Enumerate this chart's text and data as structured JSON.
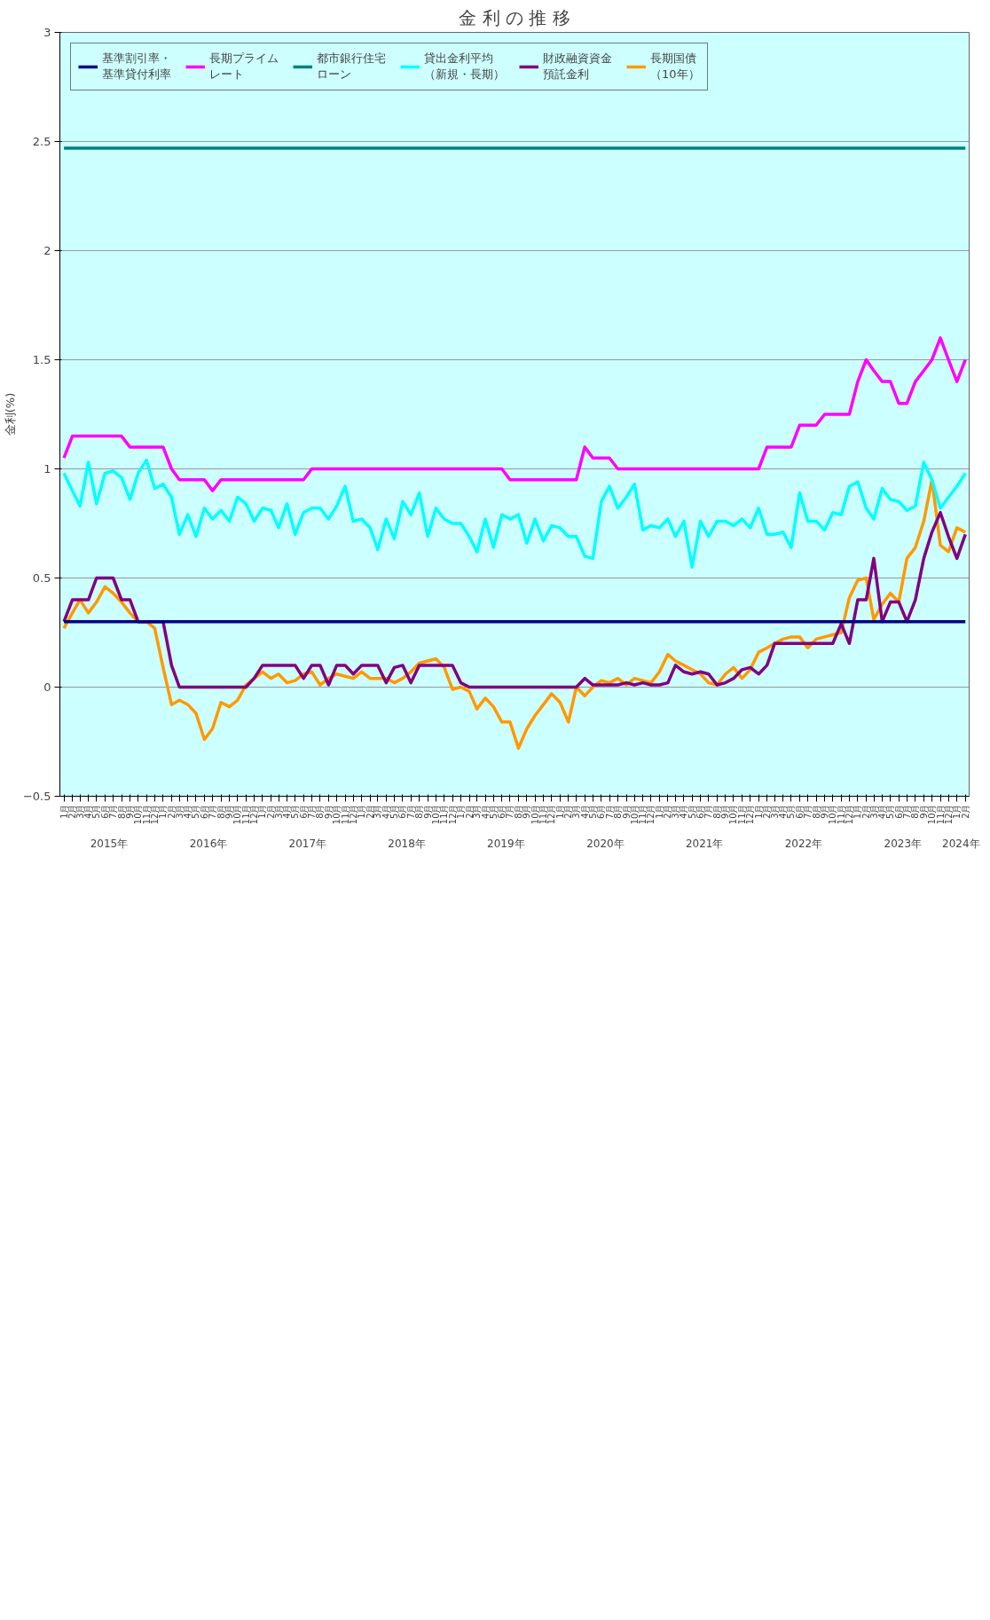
{
  "chart_data": {
    "type": "line",
    "title": "金 利 の 推 移",
    "ylabel": "金利(%)",
    "x": [
      "2015-01",
      "2015-02",
      "2015-03",
      "2015-04",
      "2015-05",
      "2015-06",
      "2015-07",
      "2015-08",
      "2015-09",
      "2015-10",
      "2015-11",
      "2015-12",
      "2016-01",
      "2016-02",
      "2016-03",
      "2016-04",
      "2016-05",
      "2016-06",
      "2016-07",
      "2016-08",
      "2016-09",
      "2016-10",
      "2016-11",
      "2016-12",
      "2017-01",
      "2017-02",
      "2017-03",
      "2017-04",
      "2017-05",
      "2017-06",
      "2017-07",
      "2017-08",
      "2017-09",
      "2017-10",
      "2017-11",
      "2017-12",
      "2018-01",
      "2018-02",
      "2018-03",
      "2018-04",
      "2018-05",
      "2018-06",
      "2018-07",
      "2018-08",
      "2018-09",
      "2018-10",
      "2018-11",
      "2018-12",
      "2019-01",
      "2019-02",
      "2019-03",
      "2019-04",
      "2019-05",
      "2019-06",
      "2019-07",
      "2019-08",
      "2019-09",
      "2019-10",
      "2019-11",
      "2019-12",
      "2020-01",
      "2020-02",
      "2020-03",
      "2020-04",
      "2020-05",
      "2020-06",
      "2020-07",
      "2020-08",
      "2020-09",
      "2020-10",
      "2020-11",
      "2020-12",
      "2021-01",
      "2021-02",
      "2021-03",
      "2021-04",
      "2021-05",
      "2021-06",
      "2021-07",
      "2021-08",
      "2021-09",
      "2021-10",
      "2021-11",
      "2021-12",
      "2022-01",
      "2022-02",
      "2022-03",
      "2022-04",
      "2022-05",
      "2022-06",
      "2022-07",
      "2022-08",
      "2022-09",
      "2022-10",
      "2022-11",
      "2022-12",
      "2023-01",
      "2023-02",
      "2023-03",
      "2023-04",
      "2023-05",
      "2023-06",
      "2023-07",
      "2023-08",
      "2023-09",
      "2023-10",
      "2023-11",
      "2023-12",
      "2024-01",
      "2024-02"
    ],
    "series": [
      {
        "name": "基準割引率・基準貸付利率",
        "color": "#000080",
        "values": [
          0.3,
          0.3,
          0.3,
          0.3,
          0.3,
          0.3,
          0.3,
          0.3,
          0.3,
          0.3,
          0.3,
          0.3,
          0.3,
          0.3,
          0.3,
          0.3,
          0.3,
          0.3,
          0.3,
          0.3,
          0.3,
          0.3,
          0.3,
          0.3,
          0.3,
          0.3,
          0.3,
          0.3,
          0.3,
          0.3,
          0.3,
          0.3,
          0.3,
          0.3,
          0.3,
          0.3,
          0.3,
          0.3,
          0.3,
          0.3,
          0.3,
          0.3,
          0.3,
          0.3,
          0.3,
          0.3,
          0.3,
          0.3,
          0.3,
          0.3,
          0.3,
          0.3,
          0.3,
          0.3,
          0.3,
          0.3,
          0.3,
          0.3,
          0.3,
          0.3,
          0.3,
          0.3,
          0.3,
          0.3,
          0.3,
          0.3,
          0.3,
          0.3,
          0.3,
          0.3,
          0.3,
          0.3,
          0.3,
          0.3,
          0.3,
          0.3,
          0.3,
          0.3,
          0.3,
          0.3,
          0.3,
          0.3,
          0.3,
          0.3,
          0.3,
          0.3,
          0.3,
          0.3,
          0.3,
          0.3,
          0.3,
          0.3,
          0.3,
          0.3,
          0.3,
          0.3,
          0.3,
          0.3,
          0.3,
          0.3,
          0.3,
          0.3,
          0.3,
          0.3,
          0.3,
          0.3,
          0.3,
          0.3,
          0.3,
          0.3
        ]
      },
      {
        "name": "長期プライムレート",
        "color": "#ff00ff",
        "values": [
          1.05,
          1.15,
          1.15,
          1.15,
          1.15,
          1.15,
          1.15,
          1.15,
          1.1,
          1.1,
          1.1,
          1.1,
          1.1,
          1.0,
          0.95,
          0.95,
          0.95,
          0.95,
          0.9,
          0.95,
          0.95,
          0.95,
          0.95,
          0.95,
          0.95,
          0.95,
          0.95,
          0.95,
          0.95,
          0.95,
          1.0,
          1.0,
          1.0,
          1.0,
          1.0,
          1.0,
          1.0,
          1.0,
          1.0,
          1.0,
          1.0,
          1.0,
          1.0,
          1.0,
          1.0,
          1.0,
          1.0,
          1.0,
          1.0,
          1.0,
          1.0,
          1.0,
          1.0,
          1.0,
          0.95,
          0.95,
          0.95,
          0.95,
          0.95,
          0.95,
          0.95,
          0.95,
          0.95,
          1.1,
          1.05,
          1.05,
          1.05,
          1.0,
          1.0,
          1.0,
          1.0,
          1.0,
          1.0,
          1.0,
          1.0,
          1.0,
          1.0,
          1.0,
          1.0,
          1.0,
          1.0,
          1.0,
          1.0,
          1.0,
          1.0,
          1.1,
          1.1,
          1.1,
          1.1,
          1.2,
          1.2,
          1.2,
          1.25,
          1.25,
          1.25,
          1.25,
          1.4,
          1.5,
          1.45,
          1.4,
          1.4,
          1.3,
          1.3,
          1.4,
          1.45,
          1.5,
          1.6,
          1.5,
          1.4,
          1.5
        ]
      },
      {
        "name": "都市銀行住宅ローン",
        "color": "#008080",
        "values": [
          2.47,
          2.47,
          2.47,
          2.47,
          2.47,
          2.47,
          2.47,
          2.47,
          2.47,
          2.47,
          2.47,
          2.47,
          2.47,
          2.47,
          2.47,
          2.47,
          2.47,
          2.47,
          2.47,
          2.47,
          2.47,
          2.47,
          2.47,
          2.47,
          2.47,
          2.47,
          2.47,
          2.47,
          2.47,
          2.47,
          2.47,
          2.47,
          2.47,
          2.47,
          2.47,
          2.47,
          2.47,
          2.47,
          2.47,
          2.47,
          2.47,
          2.47,
          2.47,
          2.47,
          2.47,
          2.47,
          2.47,
          2.47,
          2.47,
          2.47,
          2.47,
          2.47,
          2.47,
          2.47,
          2.47,
          2.47,
          2.47,
          2.47,
          2.47,
          2.47,
          2.47,
          2.47,
          2.47,
          2.47,
          2.47,
          2.47,
          2.47,
          2.47,
          2.47,
          2.47,
          2.47,
          2.47,
          2.47,
          2.47,
          2.47,
          2.47,
          2.47,
          2.47,
          2.47,
          2.47,
          2.47,
          2.47,
          2.47,
          2.47,
          2.47,
          2.47,
          2.47,
          2.47,
          2.47,
          2.47,
          2.47,
          2.47,
          2.47,
          2.47,
          2.47,
          2.47,
          2.47,
          2.47,
          2.47,
          2.47,
          2.47,
          2.47,
          2.47,
          2.47,
          2.47,
          2.47,
          2.47,
          2.47,
          2.47,
          2.47
        ]
      },
      {
        "name": "貸出金利平均（新規・長期）",
        "color": "#00ffff",
        "values": [
          0.98,
          0.9,
          0.83,
          1.03,
          0.84,
          0.98,
          0.99,
          0.96,
          0.86,
          0.98,
          1.04,
          0.91,
          0.93,
          0.87,
          0.7,
          0.79,
          0.69,
          0.82,
          0.77,
          0.81,
          0.76,
          0.87,
          0.84,
          0.76,
          0.82,
          0.81,
          0.73,
          0.84,
          0.7,
          0.8,
          0.82,
          0.82,
          0.77,
          0.83,
          0.92,
          0.76,
          0.77,
          0.73,
          0.63,
          0.77,
          0.68,
          0.85,
          0.79,
          0.89,
          0.69,
          0.82,
          0.77,
          0.75,
          0.75,
          0.69,
          0.62,
          0.77,
          0.64,
          0.79,
          0.77,
          0.79,
          0.66,
          0.77,
          0.67,
          0.74,
          0.73,
          0.69,
          0.69,
          0.6,
          0.59,
          0.85,
          0.92,
          0.82,
          0.87,
          0.93,
          0.72,
          0.74,
          0.73,
          0.77,
          0.69,
          0.76,
          0.55,
          0.76,
          0.69,
          0.76,
          0.76,
          0.74,
          0.77,
          0.73,
          0.82,
          0.7,
          0.7,
          0.71,
          0.64,
          0.89,
          0.76,
          0.76,
          0.72,
          0.8,
          0.79,
          0.92,
          0.94,
          0.82,
          0.77,
          0.91,
          0.86,
          0.85,
          0.81,
          0.83,
          1.03,
          0.95,
          0.82,
          0.87,
          0.92,
          0.98
        ]
      },
      {
        "name": "財政融資資金預託金利",
        "color": "#800080",
        "values": [
          0.3,
          0.4,
          0.4,
          0.4,
          0.5,
          0.5,
          0.5,
          0.4,
          0.4,
          0.3,
          0.3,
          0.3,
          0.3,
          0.1,
          0.0,
          0.0,
          0.0,
          0.0,
          0.0,
          0.0,
          0.0,
          0.0,
          0.0,
          0.04,
          0.1,
          0.1,
          0.1,
          0.1,
          0.1,
          0.04,
          0.1,
          0.1,
          0.01,
          0.1,
          0.1,
          0.06,
          0.1,
          0.1,
          0.1,
          0.02,
          0.09,
          0.1,
          0.02,
          0.1,
          0.1,
          0.1,
          0.1,
          0.1,
          0.02,
          0.0,
          0.0,
          0.0,
          0.0,
          0.0,
          0.0,
          0.0,
          0.0,
          0.0,
          0.0,
          0.0,
          0.0,
          0.0,
          0.0,
          0.04,
          0.01,
          0.01,
          0.01,
          0.01,
          0.02,
          0.01,
          0.02,
          0.01,
          0.01,
          0.02,
          0.1,
          0.07,
          0.06,
          0.07,
          0.06,
          0.01,
          0.02,
          0.04,
          0.08,
          0.09,
          0.06,
          0.1,
          0.2,
          0.2,
          0.2,
          0.2,
          0.2,
          0.2,
          0.2,
          0.2,
          0.29,
          0.2,
          0.4,
          0.4,
          0.59,
          0.3,
          0.39,
          0.39,
          0.3,
          0.4,
          0.59,
          0.71,
          0.8,
          0.69,
          0.59,
          0.7
        ]
      },
      {
        "name": "長期国債（10年）",
        "color": "#ff9900",
        "values": [
          0.27,
          0.34,
          0.4,
          0.34,
          0.39,
          0.46,
          0.43,
          0.39,
          0.34,
          0.3,
          0.3,
          0.27,
          0.09,
          -0.08,
          -0.06,
          -0.08,
          -0.12,
          -0.24,
          -0.19,
          -0.07,
          -0.09,
          -0.06,
          0.01,
          0.04,
          0.07,
          0.04,
          0.06,
          0.02,
          0.03,
          0.06,
          0.07,
          0.01,
          0.04,
          0.06,
          0.05,
          0.04,
          0.07,
          0.04,
          0.04,
          0.04,
          0.02,
          0.04,
          0.07,
          0.11,
          0.12,
          0.13,
          0.09,
          -0.01,
          0.0,
          -0.02,
          -0.1,
          -0.05,
          -0.09,
          -0.16,
          -0.16,
          -0.28,
          -0.19,
          -0.13,
          -0.08,
          -0.03,
          -0.07,
          -0.16,
          0.0,
          -0.04,
          0.0,
          0.03,
          0.02,
          0.04,
          0.01,
          0.04,
          0.03,
          0.02,
          0.07,
          0.15,
          0.12,
          0.1,
          0.08,
          0.06,
          0.02,
          0.01,
          0.06,
          0.09,
          0.04,
          0.08,
          0.16,
          0.18,
          0.2,
          0.22,
          0.23,
          0.23,
          0.18,
          0.22,
          0.23,
          0.24,
          0.25,
          0.41,
          0.49,
          0.5,
          0.31,
          0.38,
          0.43,
          0.39,
          0.59,
          0.64,
          0.76,
          0.95,
          0.65,
          0.62,
          0.73,
          0.71
        ]
      }
    ],
    "xlim": [
      "2014-12-17",
      "2024-02-15"
    ],
    "xticks": [
      {
        "value": "2015-01",
        "label": "1月"
      },
      {
        "value": "2015-02",
        "label": "2月"
      },
      {
        "value": "2015-03",
        "label": "3月"
      },
      {
        "value": "2015-04",
        "label": "4月"
      },
      {
        "value": "2015-05",
        "label": "5月"
      },
      {
        "value": "2015-06",
        "label": "6月"
      },
      {
        "value": "2015-07",
        "label": "7月"
      },
      {
        "value": "2015-08",
        "label": "8月"
      },
      {
        "value": "2015-09",
        "label": "9月"
      },
      {
        "value": "2015-10",
        "label": "10月"
      },
      {
        "value": "2015-11",
        "label": "11月"
      },
      {
        "value": "2015-12",
        "label": "12月"
      },
      {
        "value": "2016-01",
        "label": "1月"
      },
      {
        "value": "2016-02",
        "label": "2月"
      },
      {
        "value": "2016-03",
        "label": "3月"
      },
      {
        "value": "2016-04",
        "label": "4月"
      },
      {
        "value": "2016-05",
        "label": "5月"
      },
      {
        "value": "2016-06",
        "label": "6月"
      },
      {
        "value": "2016-07",
        "label": "7月"
      },
      {
        "value": "2016-08",
        "label": "8月"
      },
      {
        "value": "2016-09",
        "label": "9月"
      },
      {
        "value": "2016-10",
        "label": "10月"
      },
      {
        "value": "2016-11",
        "label": "11月"
      },
      {
        "value": "2016-12",
        "label": "12月"
      },
      {
        "value": "2017-01",
        "label": "1月"
      },
      {
        "value": "2017-02",
        "label": "2月"
      },
      {
        "value": "2017-03",
        "label": "3月"
      },
      {
        "value": "2017-04",
        "label": "4月"
      },
      {
        "value": "2017-05",
        "label": "5月"
      },
      {
        "value": "2017-06",
        "label": "6月"
      },
      {
        "value": "2017-07",
        "label": "7月"
      },
      {
        "value": "2017-08",
        "label": "8月"
      },
      {
        "value": "2017-09",
        "label": "9月"
      },
      {
        "value": "2017-10",
        "label": "10月"
      },
      {
        "value": "2017-11",
        "label": "11月"
      },
      {
        "value": "2017-12",
        "label": "12月"
      },
      {
        "value": "2018-01",
        "label": "1月"
      },
      {
        "value": "2018-02",
        "label": "2月"
      },
      {
        "value": "2018-03",
        "label": "3月"
      },
      {
        "value": "2018-04",
        "label": "4月"
      },
      {
        "value": "2018-05",
        "label": "5月"
      },
      {
        "value": "2018-06",
        "label": "6月"
      },
      {
        "value": "2018-07",
        "label": "7月"
      },
      {
        "value": "2018-08",
        "label": "8月"
      },
      {
        "value": "2018-09",
        "label": "9月"
      },
      {
        "value": "2018-10",
        "label": "10月"
      },
      {
        "value": "2018-11",
        "label": "11月"
      },
      {
        "value": "2018-12",
        "label": "12月"
      },
      {
        "value": "2019-01",
        "label": "1月"
      },
      {
        "value": "2019-02",
        "label": "2月"
      },
      {
        "value": "2019-03",
        "label": "3月"
      },
      {
        "value": "2019-04",
        "label": "4月"
      },
      {
        "value": "2019-05",
        "label": "5月"
      },
      {
        "value": "2019-06",
        "label": "6月"
      },
      {
        "value": "2019-07",
        "label": "7月"
      },
      {
        "value": "2019-08",
        "label": "8月"
      },
      {
        "value": "2019-09",
        "label": "9月"
      },
      {
        "value": "2019-10",
        "label": "10月"
      },
      {
        "value": "2019-11",
        "label": "11月"
      },
      {
        "value": "2019-12",
        "label": "12月"
      },
      {
        "value": "2020-01",
        "label": "1月"
      },
      {
        "value": "2020-02",
        "label": "2月"
      },
      {
        "value": "2020-03",
        "label": "3月"
      },
      {
        "value": "2020-04",
        "label": "4月"
      },
      {
        "value": "2020-05",
        "label": "5月"
      },
      {
        "value": "2020-06",
        "label": "6月"
      },
      {
        "value": "2020-07",
        "label": "7月"
      },
      {
        "value": "2020-08",
        "label": "8月"
      },
      {
        "value": "2020-09",
        "label": "9月"
      },
      {
        "value": "2020-10",
        "label": "10月"
      },
      {
        "value": "2020-11",
        "label": "11月"
      },
      {
        "value": "2020-12",
        "label": "12月"
      },
      {
        "value": "2021-01",
        "label": "1月"
      },
      {
        "value": "2021-02",
        "label": "2月"
      },
      {
        "value": "2021-03",
        "label": "3月"
      },
      {
        "value": "2021-04",
        "label": "4月"
      },
      {
        "value": "2021-05",
        "label": "5月"
      },
      {
        "value": "2021-06",
        "label": "6月"
      },
      {
        "value": "2021-07",
        "label": "7月"
      },
      {
        "value": "2021-08",
        "label": "8月"
      },
      {
        "value": "2021-09",
        "label": "9月"
      },
      {
        "value": "2021-10",
        "label": "10月"
      },
      {
        "value": "2021-11",
        "label": "11月"
      },
      {
        "value": "2021-12",
        "label": "12月"
      },
      {
        "value": "2022-01",
        "label": "1月"
      },
      {
        "value": "2022-02",
        "label": "2月"
      },
      {
        "value": "2022-03",
        "label": "3月"
      },
      {
        "value": "2022-04",
        "label": "4月"
      },
      {
        "value": "2022-05",
        "label": "5月"
      },
      {
        "value": "2022-06",
        "label": "6月"
      },
      {
        "value": "2022-07",
        "label": "7月"
      },
      {
        "value": "2022-08",
        "label": "8月"
      },
      {
        "value": "2022-09",
        "label": "9月"
      },
      {
        "value": "2022-10",
        "label": "10月"
      },
      {
        "value": "2022-11",
        "label": "11月"
      },
      {
        "value": "2022-12",
        "label": "12月"
      },
      {
        "value": "2023-01",
        "label": "1月"
      },
      {
        "value": "2023-02",
        "label": "2月"
      },
      {
        "value": "2023-03",
        "label": "3月"
      },
      {
        "value": "2023-04",
        "label": "4月"
      },
      {
        "value": "2023-05",
        "label": "5月"
      },
      {
        "value": "2023-06",
        "label": "6月"
      },
      {
        "value": "2023-07",
        "label": "7月"
      },
      {
        "value": "2023-08",
        "label": "8月"
      },
      {
        "value": "2023-09",
        "label": "9月"
      },
      {
        "value": "2023-10",
        "label": "10月"
      },
      {
        "value": "2023-11",
        "label": "11月"
      },
      {
        "value": "2023-12",
        "label": "12月"
      },
      {
        "value": "2024-01",
        "label": "1月"
      },
      {
        "value": "2024-02",
        "label": "2月"
      }
    ],
    "x2lim": [
      "2014-12-17",
      "2024-02-15"
    ],
    "x2ticks": [
      {
        "value": "2015-06-16",
        "label": "2015年"
      },
      {
        "value": "2016-06-16",
        "label": "2016年"
      },
      {
        "value": "2017-06-16",
        "label": "2017年"
      },
      {
        "value": "2018-06-16",
        "label": "2018年"
      },
      {
        "value": "2019-06-16",
        "label": "2019年"
      },
      {
        "value": "2020-06-16",
        "label": "2020年"
      },
      {
        "value": "2021-06-16",
        "label": "2021年"
      },
      {
        "value": "2022-06-16",
        "label": "2022年"
      },
      {
        "value": "2023-06-16",
        "label": "2023年"
      },
      {
        "value": "2024-01-16",
        "label": "2024年"
      }
    ],
    "ylim": [
      -0.5,
      3
    ],
    "yticks": [
      {
        "value": -0.5,
        "label": "−0.5"
      },
      0,
      0.5,
      1,
      1.5,
      2,
      2.5,
      3
    ],
    "grid": "y",
    "legend": "top left",
    "marker": "none",
    "line_style": "solid"
  }
}
